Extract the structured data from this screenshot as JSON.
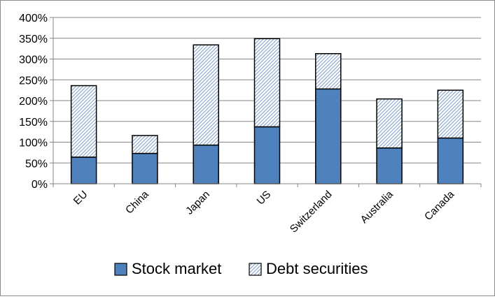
{
  "chart_data": {
    "type": "bar",
    "stacked": true,
    "title": "",
    "xlabel": "",
    "ylabel": "",
    "categories": [
      "EU",
      "China",
      "Japan",
      "US",
      "Switzerland",
      "Australia",
      "Canada"
    ],
    "series": [
      {
        "name": "Stock market",
        "values": [
          64,
          73,
          93,
          137,
          228,
          86,
          110
        ],
        "color": "#4f81bd",
        "pattern": "solid"
      },
      {
        "name": "Debt securities",
        "values": [
          172,
          43,
          241,
          212,
          85,
          118,
          115
        ],
        "color": "#ffffff",
        "pattern": "diagonal-hatch",
        "hatch_color": "#7f9fc8"
      }
    ],
    "ylim": [
      0,
      400
    ],
    "yticks": [
      0,
      50,
      100,
      150,
      200,
      250,
      300,
      350,
      400
    ],
    "ytick_labels": [
      "0%",
      "50%",
      "100%",
      "150%",
      "200%",
      "250%",
      "300%",
      "350%",
      "400%"
    ],
    "grid": true,
    "legend_position": "bottom",
    "bar_outline_color": "#000000",
    "gridline_color": "#868686"
  }
}
